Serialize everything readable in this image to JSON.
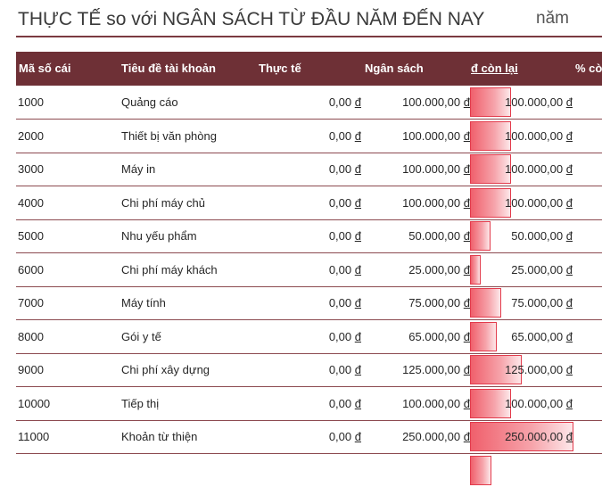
{
  "title": "THỰC TẾ so với NGÂN SÁCH TỪ ĐẦU NĂM ĐẾN NAY",
  "year_label": "năm",
  "currency": "đ",
  "columns": {
    "id": "Mã số cái",
    "name": "Tiêu đề tài khoản",
    "actual": "Thực tế",
    "budget": "Ngân sách",
    "remaining": "đ còn lại",
    "percent": "% còn"
  },
  "rows": [
    {
      "id": "1000",
      "name": "Quảng cáo",
      "actual": "0,00",
      "budget": "100.000,00",
      "remaining": "100.000,00",
      "bar_fraction": 0.4
    },
    {
      "id": "2000",
      "name": "Thiết bị văn phòng",
      "actual": "0,00",
      "budget": "100.000,00",
      "remaining": "100.000,00",
      "bar_fraction": 0.4
    },
    {
      "id": "3000",
      "name": "Máy in",
      "actual": "0,00",
      "budget": "100.000,00",
      "remaining": "100.000,00",
      "bar_fraction": 0.4
    },
    {
      "id": "4000",
      "name": "Chi phí máy chủ",
      "actual": "0,00",
      "budget": "100.000,00",
      "remaining": "100.000,00",
      "bar_fraction": 0.4
    },
    {
      "id": "5000",
      "name": "Nhu yếu phẩm",
      "actual": "0,00",
      "budget": "50.000,00",
      "remaining": "50.000,00",
      "bar_fraction": 0.2
    },
    {
      "id": "6000",
      "name": "Chi phí máy khách",
      "actual": "0,00",
      "budget": "25.000,00",
      "remaining": "25.000,00",
      "bar_fraction": 0.1
    },
    {
      "id": "7000",
      "name": "Máy tính",
      "actual": "0,00",
      "budget": "75.000,00",
      "remaining": "75.000,00",
      "bar_fraction": 0.3
    },
    {
      "id": "8000",
      "name": "Gói y tế",
      "actual": "0,00",
      "budget": "65.000,00",
      "remaining": "65.000,00",
      "bar_fraction": 0.26
    },
    {
      "id": "9000",
      "name": "Chi phí xây dựng",
      "actual": "0,00",
      "budget": "125.000,00",
      "remaining": "125.000,00",
      "bar_fraction": 0.5
    },
    {
      "id": "10000",
      "name": "Tiếp thị",
      "actual": "0,00",
      "budget": "100.000,00",
      "remaining": "100.000,00",
      "bar_fraction": 0.4
    },
    {
      "id": "11000",
      "name": "Khoản từ thiện",
      "actual": "0,00",
      "budget": "250.000,00",
      "remaining": "250.000,00",
      "bar_fraction": 1.0
    }
  ]
}
